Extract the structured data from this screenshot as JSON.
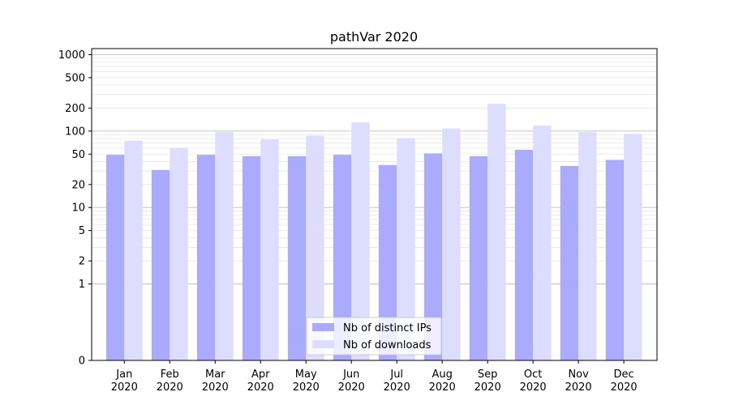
{
  "chart_data": {
    "type": "bar",
    "title": "pathVar 2020",
    "xlabel": "",
    "ylabel": "",
    "y_scale": "symlog",
    "ylim": [
      0,
      1200
    ],
    "y_ticks": [
      0,
      1,
      2,
      5,
      10,
      20,
      50,
      100,
      200,
      500,
      1000
    ],
    "y_tick_labels": [
      "0",
      "1",
      "2",
      "5",
      "10",
      "20",
      "50",
      "100",
      "200",
      "500",
      "1000"
    ],
    "grid": true,
    "legend_position": "bottom-center",
    "categories": [
      [
        "Jan",
        "2020"
      ],
      [
        "Feb",
        "2020"
      ],
      [
        "Mar",
        "2020"
      ],
      [
        "Apr",
        "2020"
      ],
      [
        "May",
        "2020"
      ],
      [
        "Jun",
        "2020"
      ],
      [
        "Jul",
        "2020"
      ],
      [
        "Aug",
        "2020"
      ],
      [
        "Sep",
        "2020"
      ],
      [
        "Oct",
        "2020"
      ],
      [
        "Nov",
        "2020"
      ],
      [
        "Dec",
        "2020"
      ]
    ],
    "series": [
      {
        "name": "Nb of distinct IPs",
        "color": "#aaaaff",
        "values": [
          49,
          31,
          49,
          47,
          47,
          49,
          36,
          51,
          47,
          57,
          35,
          42
        ]
      },
      {
        "name": "Nb of downloads",
        "color": "#ddddff",
        "values": [
          75,
          60,
          97,
          78,
          87,
          130,
          81,
          108,
          228,
          118,
          97,
          92
        ]
      }
    ]
  }
}
